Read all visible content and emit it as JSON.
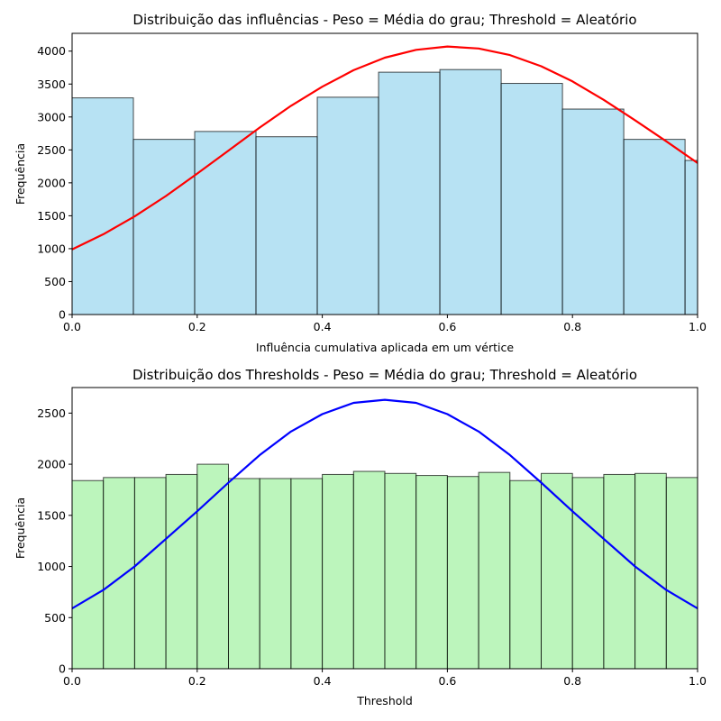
{
  "chart_data": [
    {
      "type": "bar",
      "title": "Distribuição das influências - Peso = Média do grau; Threshold = Aleatório",
      "xlabel": "Influência cumulativa aplicada em um vértice",
      "ylabel": "Frequência",
      "xlim": [
        0,
        1
      ],
      "ylim": [
        0,
        4270
      ],
      "xticks": [
        "0.0",
        "0.2",
        "0.4",
        "0.6",
        "0.8",
        "1.0"
      ],
      "xtick_values": [
        0,
        0.2,
        0.4,
        0.6,
        0.8,
        1.0
      ],
      "yticks": [
        "0",
        "500",
        "1000",
        "1500",
        "2000",
        "2500",
        "3000",
        "3500",
        "4000"
      ],
      "ytick_values": [
        0,
        500,
        1000,
        1500,
        2000,
        2500,
        3000,
        3500,
        4000
      ],
      "bin_edges": [
        0.0,
        0.098,
        0.196,
        0.294,
        0.392,
        0.49,
        0.588,
        0.686,
        0.784,
        0.882,
        0.98,
        1.0
      ],
      "values": [
        3290,
        2660,
        2780,
        2700,
        3300,
        3680,
        3720,
        3510,
        3120,
        2660,
        2340
      ],
      "bar_color": "#87CEEB",
      "curve": {
        "color": "#FF0000",
        "x": [
          0.0,
          0.05,
          0.1,
          0.15,
          0.2,
          0.25,
          0.3,
          0.35,
          0.4,
          0.45,
          0.5,
          0.55,
          0.6,
          0.65,
          0.7,
          0.75,
          0.8,
          0.85,
          0.9,
          0.95,
          1.0
        ],
        "y": [
          990,
          1220,
          1490,
          1800,
          2140,
          2490,
          2840,
          3170,
          3460,
          3710,
          3900,
          4020,
          4070,
          4040,
          3940,
          3770,
          3540,
          3260,
          2950,
          2630,
          2300
        ]
      }
    },
    {
      "type": "bar",
      "title": "Distribuição dos Thresholds - Peso = Média do grau; Threshold = Aleatório",
      "xlabel": "Threshold",
      "ylabel": "Frequência",
      "xlim": [
        0,
        1
      ],
      "ylim": [
        0,
        2750
      ],
      "xticks": [
        "0.0",
        "0.2",
        "0.4",
        "0.6",
        "0.8",
        "1.0"
      ],
      "xtick_values": [
        0,
        0.2,
        0.4,
        0.6,
        0.8,
        1.0
      ],
      "yticks": [
        "0",
        "500",
        "1000",
        "1500",
        "2000",
        "2500"
      ],
      "ytick_values": [
        0,
        500,
        1000,
        1500,
        2000,
        2500
      ],
      "bin_edges": [
        0.0,
        0.05,
        0.1,
        0.15,
        0.2,
        0.25,
        0.3,
        0.35,
        0.4,
        0.45,
        0.5,
        0.55,
        0.6,
        0.65,
        0.7,
        0.75,
        0.8,
        0.85,
        0.9,
        0.95,
        1.0
      ],
      "values": [
        1840,
        1870,
        1870,
        1900,
        2000,
        1860,
        1860,
        1860,
        1900,
        1930,
        1910,
        1890,
        1880,
        1920,
        1840,
        1910,
        1870,
        1900,
        1910,
        1870
      ],
      "bar_color": "#90EE90",
      "curve": {
        "color": "#0000FF",
        "x": [
          0.0,
          0.05,
          0.1,
          0.15,
          0.2,
          0.25,
          0.3,
          0.35,
          0.4,
          0.45,
          0.5,
          0.55,
          0.6,
          0.65,
          0.7,
          0.75,
          0.8,
          0.85,
          0.9,
          0.95,
          1.0
        ],
        "y": [
          590,
          770,
          1000,
          1270,
          1540,
          1820,
          2090,
          2320,
          2490,
          2600,
          2630,
          2600,
          2490,
          2320,
          2090,
          1820,
          1540,
          1270,
          1000,
          770,
          590
        ]
      }
    }
  ]
}
